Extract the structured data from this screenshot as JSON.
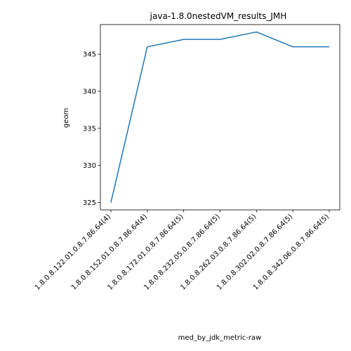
{
  "chart_data": {
    "type": "line",
    "title": "java-1.8.0nestedVM_results_JMH",
    "xlabel": "med_by_jdk_metric-raw",
    "ylabel": "geom",
    "categories": [
      "1.8.0.8.122.01.0.8.7.86.64(4)",
      "1.8.0.8.152.01.0.8.7.86.64(4)",
      "1.8.0.8.172.01.0.8.7.86.64(5)",
      "1.8.0.8.232.05.0.8.7.86.64(5)",
      "1.8.0.8.262.03.0.8.7.86.64(5)",
      "1.8.0.8.302.02.0.8.7.86.64(5)",
      "1.8.0.8.342.06.0.8.7.86.64(5)"
    ],
    "series": [
      {
        "values": [
          325,
          346,
          347,
          347,
          348,
          346,
          346
        ]
      }
    ],
    "ylim": [
      324,
      349
    ],
    "yticks": [
      325,
      330,
      335,
      340,
      345
    ],
    "grid": false,
    "legend": "none",
    "line_color": "#1f77b4"
  }
}
